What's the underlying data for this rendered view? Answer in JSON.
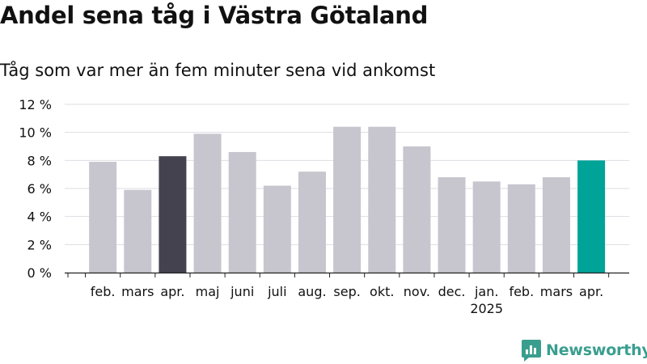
{
  "title": "Andel sena tåg i Västra Götaland",
  "subtitle": "Tåg som var mer än fem minuter sena vid ankomst",
  "brand": {
    "name": "Newsworthy",
    "color": "#3a9e8f"
  },
  "chart_data": {
    "type": "bar",
    "categories": [
      "feb.",
      "mars",
      "apr.",
      "maj",
      "juni",
      "juli",
      "aug.",
      "sep.",
      "okt.",
      "nov.",
      "dec.",
      "jan.",
      "feb.",
      "mars",
      "apr."
    ],
    "year_labels": [
      {
        "category_index": 11,
        "label": "2025"
      }
    ],
    "values": [
      7.9,
      5.9,
      8.3,
      9.9,
      8.6,
      6.2,
      7.2,
      10.4,
      10.4,
      9.0,
      6.8,
      6.5,
      6.3,
      6.8,
      8.0
    ],
    "highlight": [
      {
        "index": 2,
        "color": "#44424f"
      },
      {
        "index": 14,
        "color": "#00a398"
      }
    ],
    "default_color": "#c7c6cf",
    "ylim": [
      0,
      12
    ],
    "yticks": [
      0,
      2,
      4,
      6,
      8,
      10,
      12
    ],
    "ytick_labels": [
      "0 %",
      "2 %",
      "4 %",
      "6 %",
      "8 %",
      "10 %",
      "12 %"
    ],
    "grid": true,
    "xlabel": "",
    "ylabel": ""
  }
}
